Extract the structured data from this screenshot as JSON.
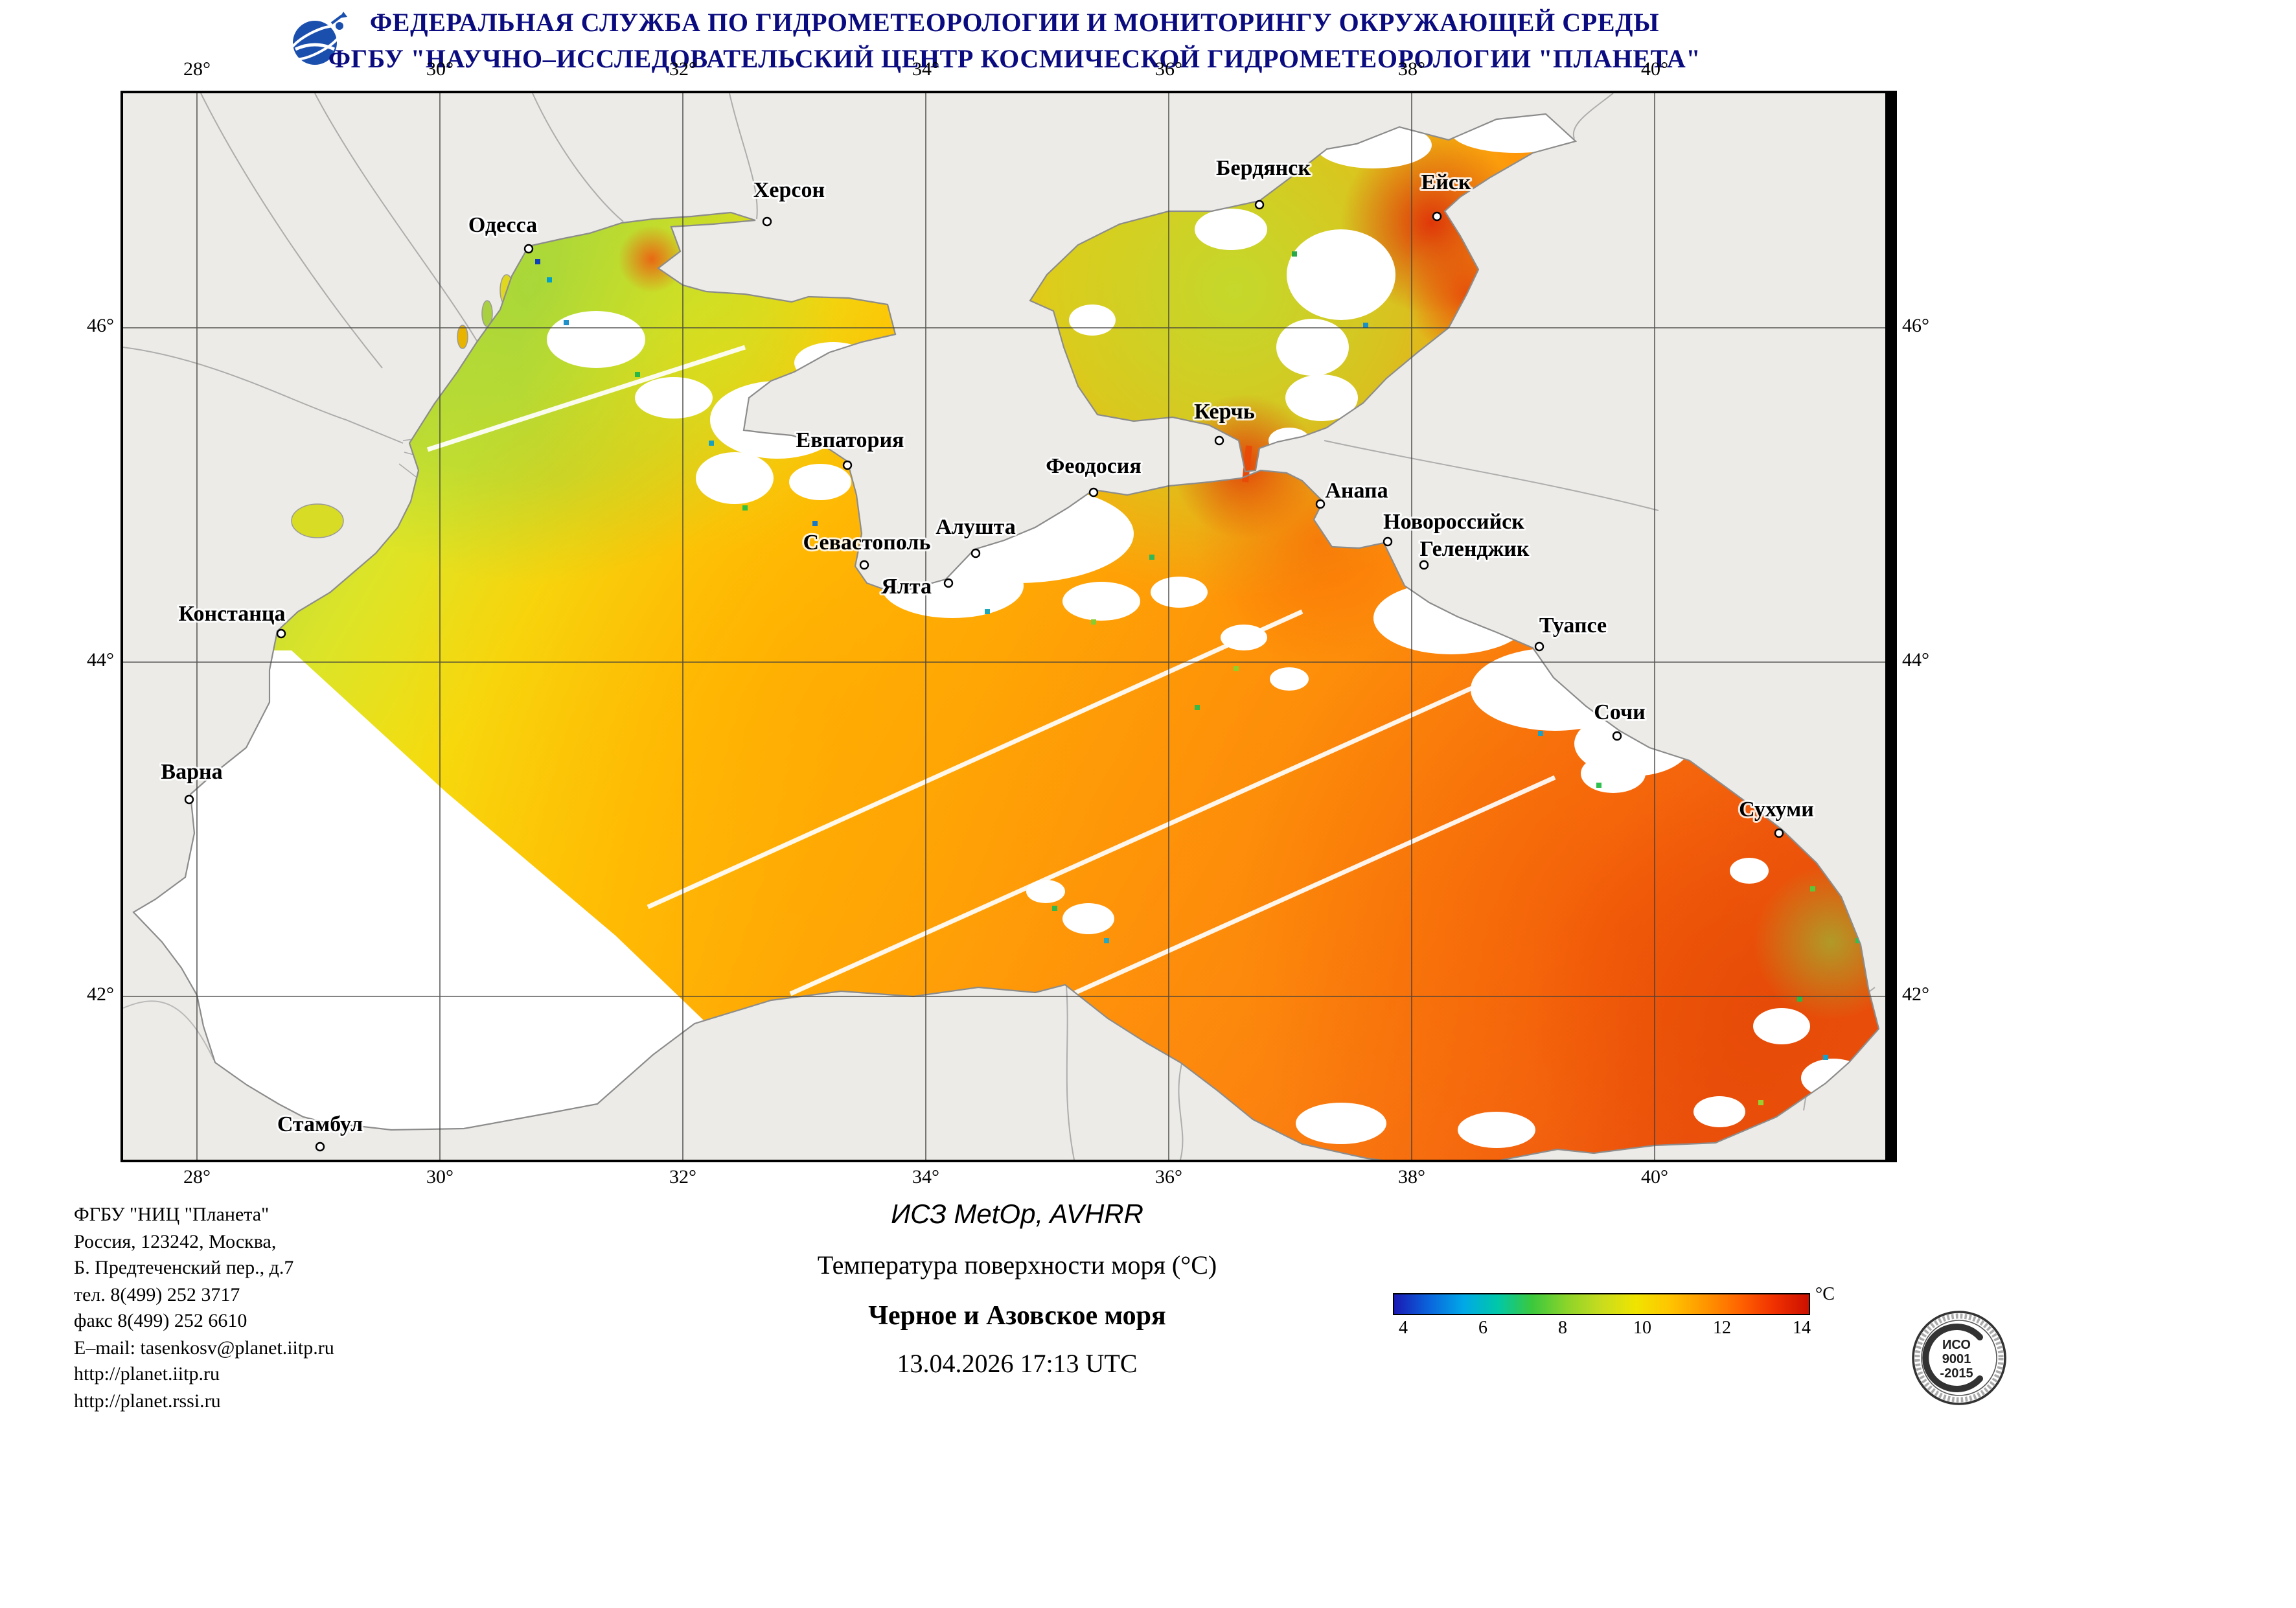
{
  "header": {
    "line1": "ФЕДЕРАЛЬНАЯ СЛУЖБА ПО ГИДРОМЕТЕОРОЛОГИИ И МОНИТОРИНГУ ОКРУЖАЮЩЕЙ СРЕДЫ",
    "line2": "ФГБУ \"НАУЧНО–ИССЛЕДОВАТЕЛЬСКИЙ ЦЕНТР КОСМИЧЕСКОЙ ГИДРОМЕТЕОРОЛОГИИ \"ПЛАНЕТА\"",
    "text_color": "#0b0b80"
  },
  "map_data": {
    "type": "geographic-sst-map",
    "region": "Black Sea and Sea of Azov",
    "lon_ticks": [
      "28°",
      "30°",
      "32°",
      "34°",
      "36°",
      "38°",
      "40°"
    ],
    "lat_ticks": [
      "46°",
      "44°",
      "42°"
    ],
    "land_color": "#ecebe7",
    "no_data_color": "#ffffff",
    "cities": [
      {
        "name": "Одесса",
        "dot": [
          313,
          120
        ],
        "label": [
          293,
          107
        ],
        "anchor": "middle"
      },
      {
        "name": "Херсон",
        "dot": [
          497,
          99
        ],
        "label": [
          514,
          80
        ],
        "anchor": "middle"
      },
      {
        "name": "Бердянск",
        "dot": [
          877,
          86
        ],
        "label": [
          880,
          63
        ],
        "anchor": "middle"
      },
      {
        "name": "Ейск",
        "dot": [
          1014,
          95
        ],
        "label": [
          1021,
          74
        ],
        "anchor": "middle"
      },
      {
        "name": "Керчь",
        "dot": [
          846,
          268
        ],
        "label": [
          850,
          251
        ],
        "anchor": "middle"
      },
      {
        "name": "Евпатория",
        "dot": [
          559,
          287
        ],
        "label": [
          561,
          273
        ],
        "anchor": "middle"
      },
      {
        "name": "Феодосия",
        "dot": [
          749,
          308
        ],
        "label": [
          749,
          293
        ],
        "anchor": "middle"
      },
      {
        "name": "Анапа",
        "dot": [
          924,
          317
        ],
        "label": [
          952,
          312
        ],
        "anchor": "middle"
      },
      {
        "name": "Новороссийск",
        "dot": [
          976,
          346
        ],
        "label": [
          1027,
          336
        ],
        "anchor": "middle"
      },
      {
        "name": "Геленджик",
        "dot": [
          1004,
          364
        ],
        "label": [
          1043,
          357
        ],
        "anchor": "middle"
      },
      {
        "name": "Севастополь",
        "dot": [
          572,
          364
        ],
        "label": [
          574,
          352
        ],
        "anchor": "middle"
      },
      {
        "name": "Алушта",
        "dot": [
          658,
          355
        ],
        "label": [
          658,
          340
        ],
        "anchor": "middle"
      },
      {
        "name": "Ялта",
        "dot": [
          637,
          378
        ],
        "label": [
          624,
          386
        ],
        "anchor": "end"
      },
      {
        "name": "Туапсе",
        "dot": [
          1093,
          427
        ],
        "label": [
          1119,
          416
        ],
        "anchor": "middle"
      },
      {
        "name": "Сочи",
        "dot": [
          1153,
          496
        ],
        "label": [
          1155,
          483
        ],
        "anchor": "middle"
      },
      {
        "name": "Констанца",
        "dot": [
          122,
          417
        ],
        "label": [
          84,
          407
        ],
        "anchor": "middle"
      },
      {
        "name": "Варна",
        "dot": [
          51,
          545
        ],
        "label": [
          53,
          529
        ],
        "anchor": "middle"
      },
      {
        "name": "Сухуми",
        "dot": [
          1278,
          571
        ],
        "label": [
          1276,
          558
        ],
        "anchor": "middle"
      },
      {
        "name": "Стамбул",
        "dot": [
          152,
          813
        ],
        "label": [
          152,
          801
        ],
        "anchor": "middle"
      }
    ]
  },
  "footer": {
    "contact_lines": [
      "ФГБУ \"НИЦ \"Планета\"",
      "Россия, 123242, Москва,",
      "Б. Предтеченский пер., д.7",
      "тел. 8(499) 252 3717",
      "факс 8(499) 252 6610",
      "E–mail: tasenkosv@planet.iitp.ru",
      "http://planet.iitp.ru",
      "http://planet.rssi.ru"
    ],
    "center": {
      "satellite": "ИСЗ MetOp, AVHRR",
      "product": "Температура поверхности моря (°C)",
      "region": "Черное и Азовское моря",
      "datetime": "13.04.2026 17:13 UTC"
    },
    "colorbar": {
      "ticks": [
        "4",
        "6",
        "8",
        "10",
        "12",
        "14"
      ],
      "unit": "°C",
      "colors": [
        "#1a1ab4",
        "#0a64dc",
        "#00a8e8",
        "#00c8a8",
        "#3cc83c",
        "#8cd42a",
        "#c8dc1e",
        "#f0e400",
        "#ffc400",
        "#ff9600",
        "#ff6400",
        "#f03000",
        "#cc1000"
      ]
    },
    "iso_stamp": {
      "line1": "ИСО",
      "line2": "9001",
      "line3": "-2015"
    }
  }
}
